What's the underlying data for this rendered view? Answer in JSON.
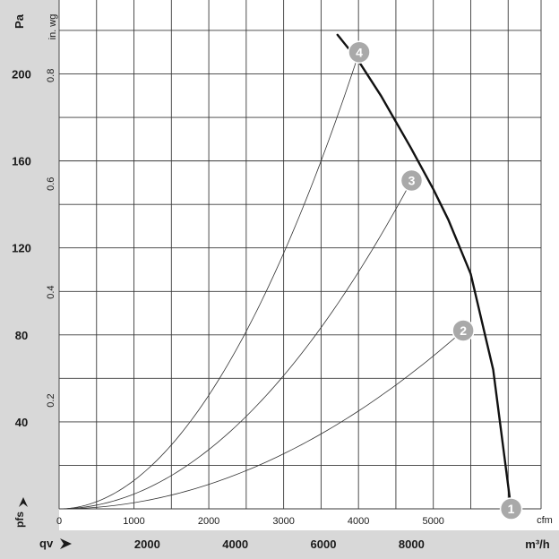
{
  "chart_data": {
    "type": "line",
    "title": "",
    "y_unit_left": "Pa",
    "y_unit_inner": "in. wg",
    "y_left_ticks": [
      40,
      80,
      120,
      160,
      200
    ],
    "y_inner_ticks": [
      0.2,
      0.4,
      0.6,
      0.8
    ],
    "y_inner_tick_labels": [
      "0.2",
      "0.4",
      "0.6",
      "0.8"
    ],
    "ylim_pa": [
      0,
      234
    ],
    "y_left_label": "pfs",
    "x_inner_unit": "cfm",
    "x_inner_ticks": [
      0,
      1000,
      2000,
      3000,
      4000,
      5000
    ],
    "x_inner_tick_labels": [
      "0",
      "1000",
      "2000",
      "3000",
      "4000",
      "5000"
    ],
    "x_bottom_unit": "m³/h",
    "x_bottom_ticks": [
      2000,
      4000,
      6000,
      8000
    ],
    "x_bottom_label": "qv",
    "xlim_cfm": [
      0,
      6440
    ],
    "grid": true,
    "series": [
      {
        "role": "fan curve",
        "x": [
          3720,
          4000,
          4300,
          4700,
          5000,
          5200,
          5500,
          5800,
          6040
        ],
        "y": [
          218,
          206,
          190,
          166,
          147,
          133,
          108,
          64,
          0
        ]
      }
    ],
    "reference_curves": [
      {
        "marker": "2",
        "x": [
          0,
          5400
        ],
        "y": [
          0,
          82
        ]
      },
      {
        "marker": "3",
        "x": [
          0,
          4710
        ],
        "y": [
          0,
          151
        ]
      },
      {
        "marker": "4",
        "x": [
          0,
          4010
        ],
        "y": [
          0,
          210
        ]
      }
    ],
    "markers": [
      {
        "label": "1",
        "x": 6040,
        "y": 0
      },
      {
        "label": "2",
        "x": 5400,
        "y": 82
      },
      {
        "label": "3",
        "x": 4710,
        "y": 151
      },
      {
        "label": "4",
        "x": 4010,
        "y": 210
      }
    ],
    "colors": {
      "background_bar": "#d8d8d8",
      "marker_fill": "#a9a9a9",
      "fan_curve": "#111111",
      "grid": "#3a3a3a"
    }
  }
}
